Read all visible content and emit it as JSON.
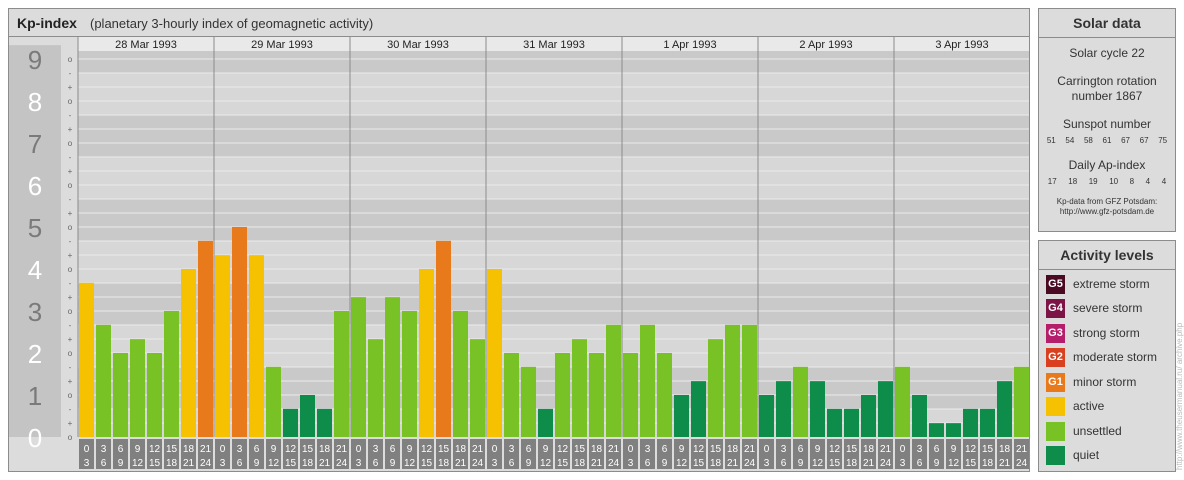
{
  "header": {
    "title": "Kp-index",
    "subtitle": "(planetary 3-hourly index of geomagnetic activity)"
  },
  "chart_data": {
    "type": "bar",
    "title": "Kp-index",
    "subtitle": "(planetary 3-hourly index of geomagnetic activity)",
    "days": [
      "28 Mar 1993",
      "29 Mar 1993",
      "30 Mar 1993",
      "31 Mar 1993",
      "1 Apr 1993",
      "2 Apr 1993",
      "3 Apr 1993"
    ],
    "interval_labels": [
      [
        "0",
        "3"
      ],
      [
        "3",
        "6"
      ],
      [
        "6",
        "9"
      ],
      [
        "9",
        "12"
      ],
      [
        "12",
        "15"
      ],
      [
        "15",
        "18"
      ],
      [
        "18",
        "21"
      ],
      [
        "21",
        "24"
      ]
    ],
    "y_ticks": [
      "0",
      "1",
      "2",
      "3",
      "4",
      "5",
      "6",
      "7",
      "8",
      "9"
    ],
    "sub_ticks": [
      "o",
      "+",
      "-"
    ],
    "ylim": [
      0,
      9.33
    ],
    "values": [
      3.67,
      2.67,
      2.0,
      2.33,
      2.0,
      3.0,
      4.0,
      4.67,
      4.33,
      5.0,
      4.33,
      1.67,
      0.67,
      1.0,
      0.67,
      3.0,
      3.33,
      2.33,
      3.33,
      3.0,
      4.0,
      4.67,
      3.0,
      2.33,
      4.0,
      2.0,
      1.67,
      0.67,
      2.0,
      2.33,
      2.0,
      2.67,
      2.0,
      2.67,
      2.0,
      1.0,
      1.33,
      2.33,
      2.67,
      2.67,
      1.0,
      1.33,
      1.67,
      1.33,
      0.67,
      0.67,
      1.0,
      1.33,
      1.67,
      1.0,
      0.33,
      0.33,
      0.67,
      0.67,
      1.33,
      1.67
    ]
  },
  "solar": {
    "title": "Solar data",
    "cycle": "Solar cycle 22",
    "carrington_line1": "Carrington rotation",
    "carrington_line2": "number 1867",
    "sunspot_label": "Sunspot number",
    "sunspot_values": [
      "51",
      "54",
      "58",
      "61",
      "67",
      "67",
      "75"
    ],
    "ap_label": "Daily Ap-index",
    "ap_values": [
      "17",
      "18",
      "19",
      "10",
      "8",
      "4",
      "4"
    ],
    "credit_line1": "Kp-data from GFZ Potsdam:",
    "credit_line2": "http://www.gfz-potsdam.de"
  },
  "activity": {
    "title": "Activity levels",
    "levels": [
      {
        "code": "G5",
        "label": "extreme storm",
        "color": "#4a0a22"
      },
      {
        "code": "G4",
        "label": "severe storm",
        "color": "#7c1545"
      },
      {
        "code": "G3",
        "label": "strong storm",
        "color": "#b51e6a"
      },
      {
        "code": "G2",
        "label": "moderate storm",
        "color": "#d8401f"
      },
      {
        "code": "G1",
        "label": "minor storm",
        "color": "#e87a1c"
      },
      {
        "code": "",
        "label": "active",
        "color": "#f6c100"
      },
      {
        "code": "",
        "label": "unsettled",
        "color": "#78c226"
      },
      {
        "code": "",
        "label": "quiet",
        "color": "#0e8c4a"
      }
    ]
  },
  "watermark": "http://www.theusermanual.ru/  archive.php"
}
